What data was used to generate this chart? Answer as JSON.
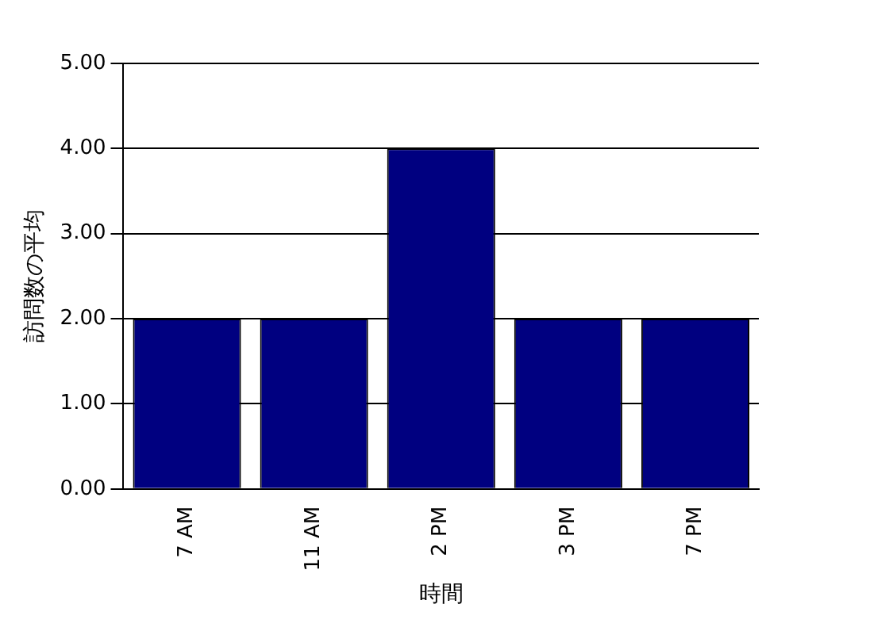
{
  "chart_data": {
    "type": "bar",
    "xlabel": "時間",
    "ylabel": "訪問数の平均",
    "categories": [
      "7 AM",
      "11 AM",
      "2 PM",
      "3 PM",
      "7 PM"
    ],
    "values": [
      2,
      2,
      4,
      2,
      2
    ],
    "color": "#000080",
    "ylim": [
      0,
      5
    ],
    "yticks": [
      {
        "value": 0,
        "label": "0.00"
      },
      {
        "value": 1,
        "label": "1.00"
      },
      {
        "value": 2,
        "label": "2.00"
      },
      {
        "value": 3,
        "label": "3.00"
      },
      {
        "value": 4,
        "label": "4.00"
      },
      {
        "value": 5,
        "label": "5.00"
      }
    ],
    "grid": "y"
  }
}
